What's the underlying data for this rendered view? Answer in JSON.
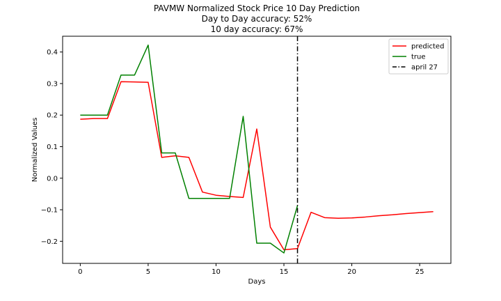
{
  "chart_data": {
    "type": "line",
    "title_lines": [
      "PAVMW Normalized Stock Price 10 Day Prediction",
      "Day to Day accuracy: 52%",
      "10 day accuracy: 67%"
    ],
    "xlabel": "Days",
    "ylabel": "Normalized Values",
    "xlim": [
      -1.3,
      27.3
    ],
    "ylim": [
      -0.27,
      0.45
    ],
    "xticks": [
      0,
      5,
      10,
      15,
      20,
      25
    ],
    "yticks": [
      -0.2,
      -0.1,
      0.0,
      0.1,
      0.2,
      0.3,
      0.4
    ],
    "ytick_labels": [
      "−0.2",
      "−0.1",
      "0.0",
      "0.1",
      "0.2",
      "0.3",
      "0.4"
    ],
    "legend_position": "upper-right",
    "series": [
      {
        "name": "predicted",
        "color": "#ff0000",
        "x": [
          0,
          1,
          2,
          3,
          4,
          5,
          6,
          7,
          8,
          9,
          10,
          11,
          12,
          13,
          14,
          15,
          16,
          17,
          18,
          19,
          20,
          21,
          22,
          23,
          24,
          25,
          26
        ],
        "values": [
          0.187,
          0.189,
          0.189,
          0.306,
          0.305,
          0.304,
          0.066,
          0.071,
          0.066,
          -0.044,
          -0.054,
          -0.058,
          -0.061,
          0.156,
          -0.155,
          -0.227,
          -0.223,
          -0.108,
          -0.125,
          -0.127,
          -0.126,
          -0.123,
          -0.119,
          -0.116,
          -0.112,
          -0.109,
          -0.106
        ]
      },
      {
        "name": "true",
        "color": "#008000",
        "x": [
          0,
          1,
          2,
          3,
          4,
          5,
          6,
          7,
          8,
          9,
          10,
          11,
          12,
          13,
          14,
          15,
          16
        ],
        "values": [
          0.2,
          0.2,
          0.2,
          0.327,
          0.327,
          0.422,
          0.08,
          0.08,
          -0.064,
          -0.064,
          -0.064,
          -0.064,
          0.196,
          -0.206,
          -0.206,
          -0.237,
          -0.087
        ]
      }
    ],
    "vline": {
      "name": "april 27",
      "x": 16,
      "color": "#000000"
    }
  }
}
